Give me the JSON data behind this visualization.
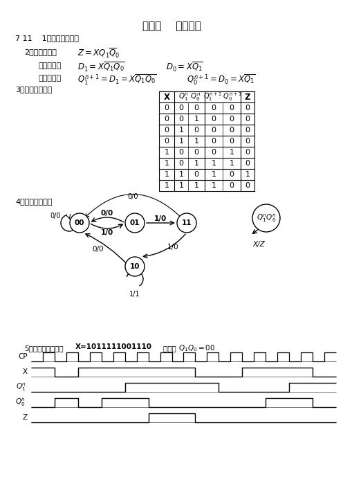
{
  "title": "第七章    习题答案",
  "section": "7 11    1、米里型状态机",
  "out2": "2、输出方程：",
  "drive": "驱动方程：",
  "state": "状态方程：",
  "sec3": "3、状态转换表：",
  "sec4": "4、状态转换图：",
  "sec5_pre": "5、时序图：已知：",
  "sec5_x": "X=1011111001110",
  "sec5_mid": "        初始：",
  "table_data": [
    [
      0,
      0,
      0,
      0,
      0,
      0
    ],
    [
      0,
      0,
      1,
      0,
      0,
      0
    ],
    [
      0,
      1,
      0,
      0,
      0,
      0
    ],
    [
      0,
      1,
      1,
      0,
      0,
      0
    ],
    [
      1,
      0,
      0,
      0,
      1,
      0
    ],
    [
      1,
      0,
      1,
      1,
      1,
      0
    ],
    [
      1,
      1,
      0,
      1,
      0,
      1
    ],
    [
      1,
      1,
      1,
      1,
      0,
      0
    ]
  ],
  "bg_color": "#ffffff",
  "text_color": "#000000",
  "X_seq": [
    1,
    0,
    1,
    1,
    1,
    1,
    1,
    0,
    0,
    1,
    1,
    1,
    0
  ]
}
